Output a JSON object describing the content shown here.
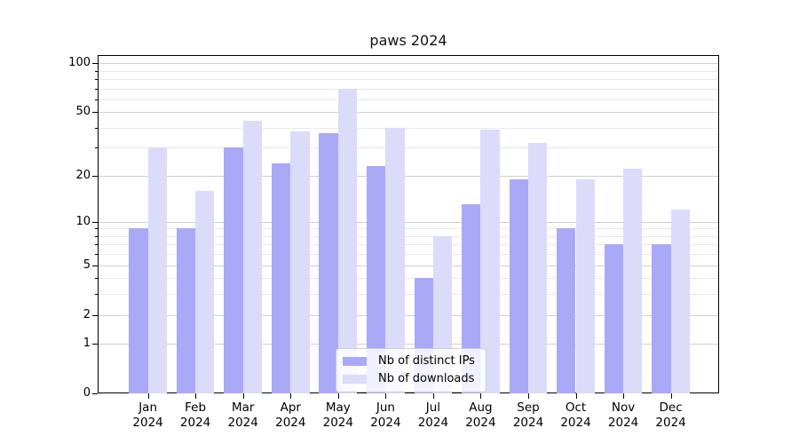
{
  "chart_data": {
    "type": "bar",
    "title": "paws 2024",
    "categories": [
      "Jan 2024",
      "Feb 2024",
      "Mar 2024",
      "Apr 2024",
      "May 2024",
      "Jun 2024",
      "Jul 2024",
      "Aug 2024",
      "Sep 2024",
      "Oct 2024",
      "Nov 2024",
      "Dec 2024"
    ],
    "series": [
      {
        "name": "Nb of distinct IPs",
        "color": "#a9a9f8",
        "values": [
          9,
          9,
          30,
          24,
          37,
          23,
          4,
          13,
          19,
          9,
          7,
          7
        ]
      },
      {
        "name": "Nb of downloads",
        "color": "#dbdbfa",
        "values": [
          30,
          16,
          44,
          38,
          70,
          40,
          8,
          39,
          32,
          19,
          22,
          12
        ]
      }
    ],
    "xlabel": "",
    "ylabel": "",
    "yscale": "log1p",
    "ylim": [
      0,
      112
    ],
    "yticks": [
      0,
      1,
      2,
      5,
      10,
      20,
      50,
      100
    ],
    "yticks_minor": [
      3,
      4,
      6,
      7,
      8,
      9,
      30,
      40,
      60,
      70,
      80,
      90
    ],
    "grid": true,
    "legend_position": "lower center"
  },
  "legend": {
    "items": [
      {
        "label": "Nb of distinct IPs",
        "color": "#a9a9f8"
      },
      {
        "label": "Nb of downloads",
        "color": "#dbdbfa"
      }
    ]
  },
  "colors": {
    "bar_distinct_ips": "#a9a9f8",
    "bar_downloads": "#dbdbfa",
    "grid_major": "#cfcfcf",
    "grid_minor": "#e9e9e9",
    "axis": "#000000",
    "background": "#ffffff"
  }
}
